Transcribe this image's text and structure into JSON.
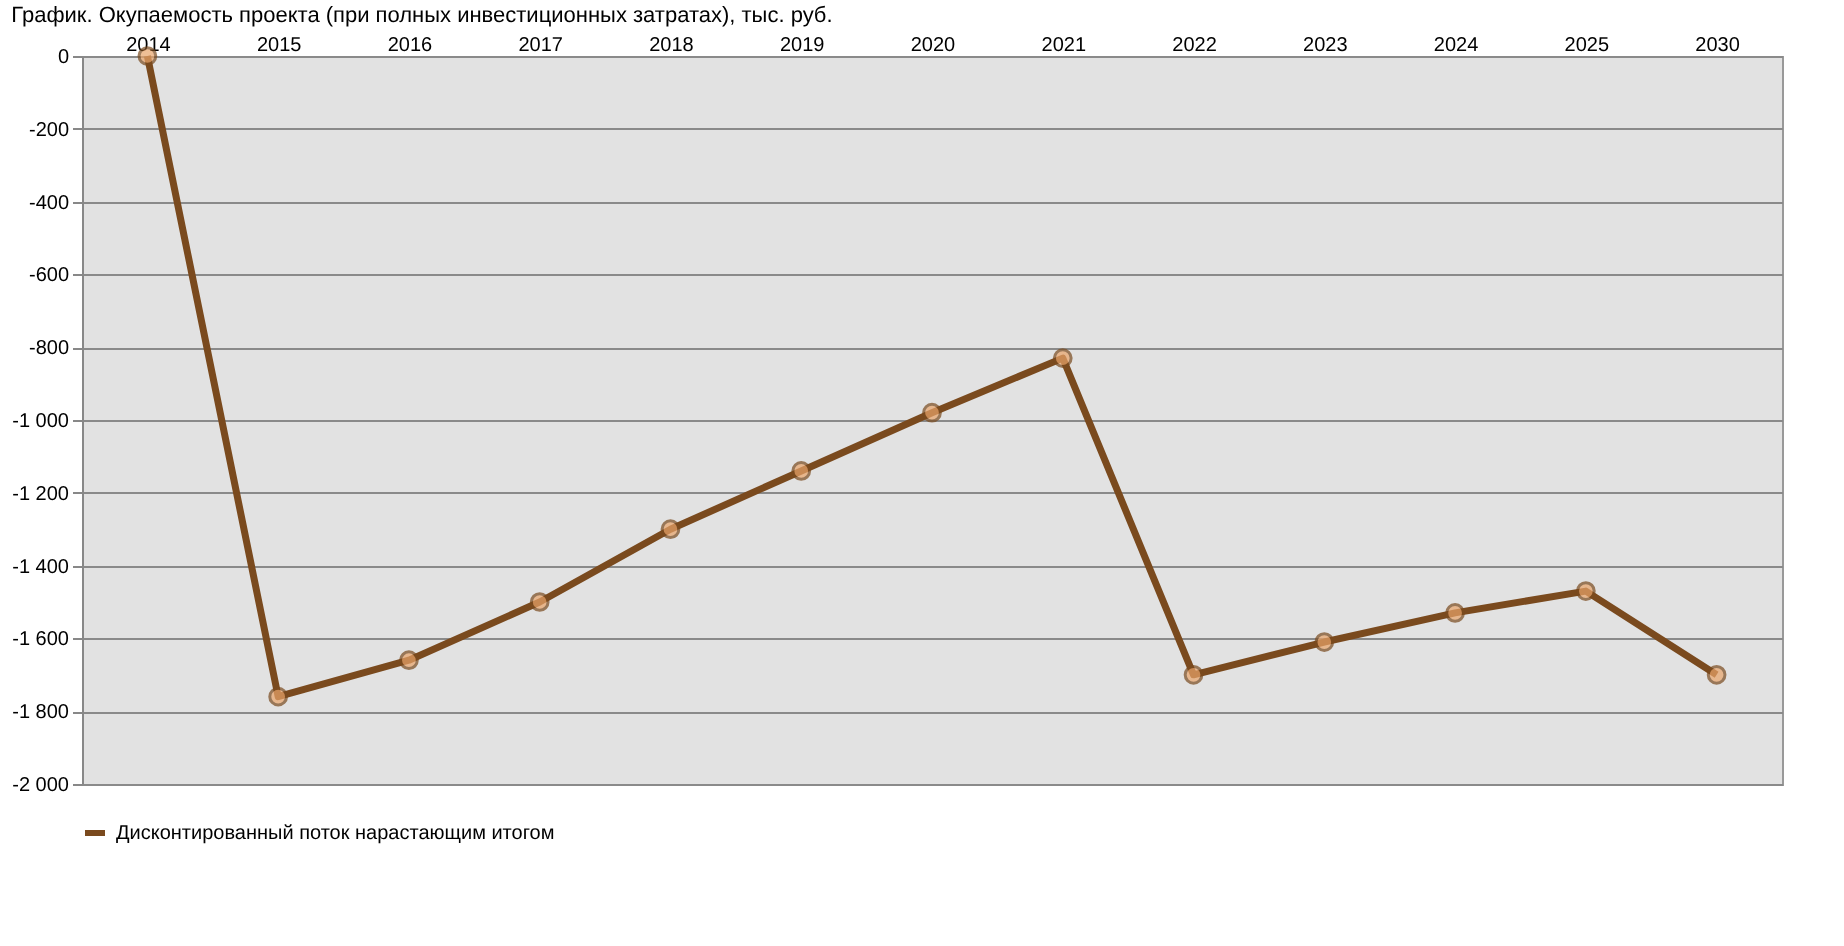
{
  "chart_data": {
    "type": "line",
    "title": "График. Окупаемость проекта (при полных инвестиционных затратах), тыс. руб.",
    "categories": [
      "2014",
      "2015",
      "2016",
      "2017",
      "2018",
      "2019",
      "2020",
      "2021",
      "2022",
      "2023",
      "2024",
      "2025",
      "2030"
    ],
    "series": [
      {
        "name": "Дисконтированный поток нарастающим итогом",
        "color": "#7a4a1e",
        "values": [
          0,
          -1760,
          -1660,
          -1500,
          -1300,
          -1140,
          -980,
          -830,
          -1700,
          -1610,
          -1530,
          -1470,
          -1700
        ]
      }
    ],
    "ylim": [
      -2000,
      0
    ],
    "yticks": [
      0,
      -200,
      -400,
      -600,
      -800,
      {
        "value": -1000,
        "label": "-1 000"
      },
      {
        "value": -1200,
        "label": "-1 200"
      },
      {
        "value": -1400,
        "label": "-1 400"
      },
      {
        "value": -1600,
        "label": "-1 600"
      },
      {
        "value": -1800,
        "label": "-1 800"
      },
      {
        "value": -2000,
        "label": "-2 000"
      }
    ],
    "grid": "y",
    "legend": "bottom",
    "marker": "circle",
    "line_style": "solid"
  }
}
